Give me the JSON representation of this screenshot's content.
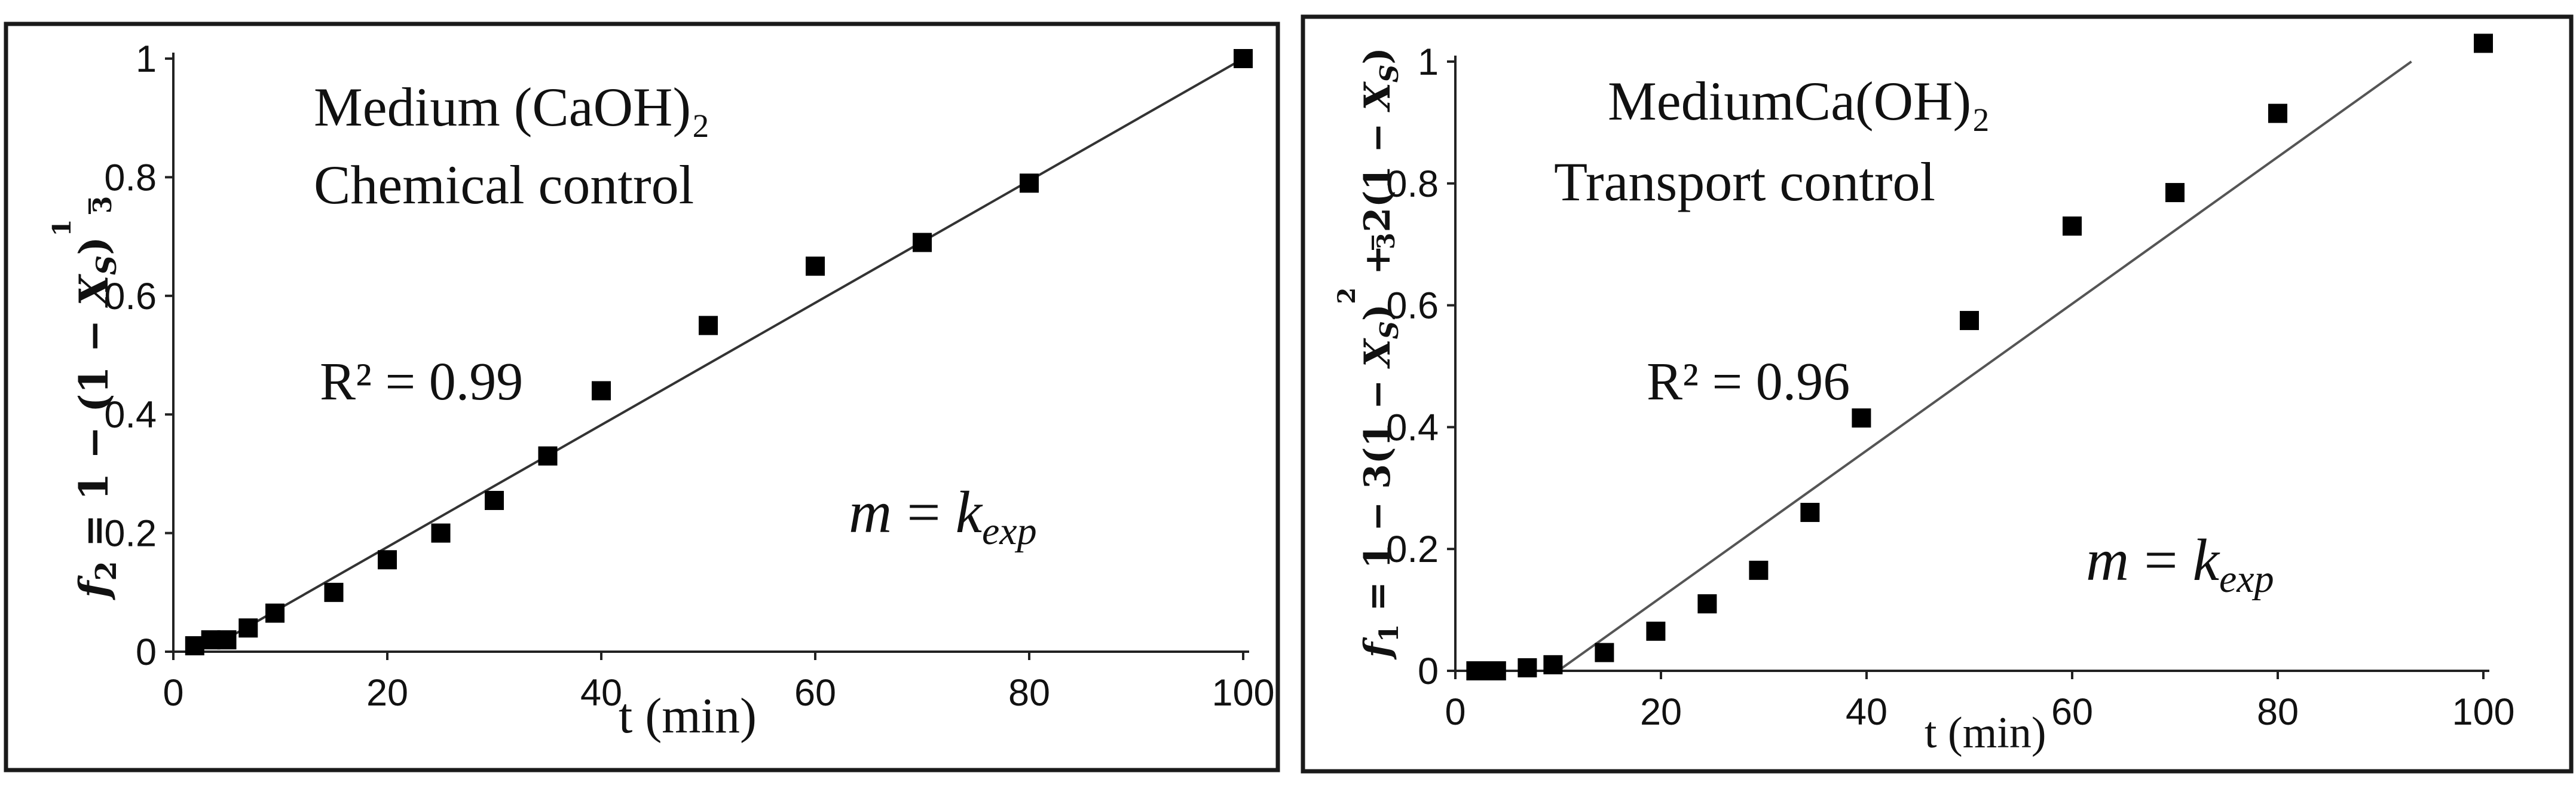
{
  "chart_data": [
    {
      "type": "scatter",
      "title": "Medium (CaOH)₂",
      "subtitle": "Chemical control",
      "xlabel": "t (min)",
      "ylabel": {
        "f": "f",
        "sub": "2",
        "rhs": " = 1 − (1 − ",
        "xs": "X",
        "xs_sub": "S",
        "close": ")",
        "exp_num": "1",
        "exp_den": "3"
      },
      "xlim": [
        0,
        100
      ],
      "ylim": [
        0,
        1
      ],
      "xticks": [
        "0",
        "20",
        "40",
        "60",
        "80",
        "100"
      ],
      "yticks": [
        "0",
        "0.2",
        "0.4",
        "0.6",
        "0.8",
        "1"
      ],
      "points": [
        {
          "x": 2,
          "y": 0.01
        },
        {
          "x": 3.5,
          "y": 0.02
        },
        {
          "x": 5,
          "y": 0.02
        },
        {
          "x": 7,
          "y": 0.04
        },
        {
          "x": 9.5,
          "y": 0.065
        },
        {
          "x": 15,
          "y": 0.1
        },
        {
          "x": 20,
          "y": 0.155
        },
        {
          "x": 25,
          "y": 0.2
        },
        {
          "x": 30,
          "y": 0.255
        },
        {
          "x": 35,
          "y": 0.33
        },
        {
          "x": 40,
          "y": 0.44
        },
        {
          "x": 50,
          "y": 0.55
        },
        {
          "x": 60,
          "y": 0.65
        },
        {
          "x": 70,
          "y": 0.69
        },
        {
          "x": 80,
          "y": 0.79
        },
        {
          "x": 100,
          "y": 1.0
        }
      ],
      "fit_line": {
        "x0": 5,
        "y0": 0.022,
        "x1": 100,
        "y1": 1.0
      },
      "r2_label": "R² = 0.99",
      "model": {
        "m": "m",
        "eq": " = ",
        "k": "k",
        "k_sub": "exp"
      },
      "colors": {
        "marker": "#000000",
        "line": "#333333",
        "frame": "#1a1a1a"
      }
    },
    {
      "type": "scatter",
      "title": "MediumCa(OH)₂",
      "subtitle": "Transport control",
      "xlabel": "t (min)",
      "ylabel": {
        "f": "f",
        "sub": "1",
        "rhs": " = 1 − 3(1 − ",
        "xs": "X",
        "xs_sub": "S",
        "close": ")",
        "exp_num": "2",
        "exp_den": "3",
        "tail": " + 2(1 − ",
        "tail_xs": "X",
        "tail_xs_sub": "S",
        "tail_close": ")"
      },
      "xlim": [
        0,
        100
      ],
      "ylim": [
        0,
        1
      ],
      "xticks": [
        "0",
        "20",
        "40",
        "60",
        "80",
        "100"
      ],
      "yticks": [
        "0",
        "0.2",
        "0.4",
        "0.6",
        "0.8",
        "1"
      ],
      "points": [
        {
          "x": 2,
          "y": 0.0
        },
        {
          "x": 3,
          "y": 0.0
        },
        {
          "x": 4,
          "y": 0.0
        },
        {
          "x": 7,
          "y": 0.005
        },
        {
          "x": 9.5,
          "y": 0.01
        },
        {
          "x": 14.5,
          "y": 0.03
        },
        {
          "x": 19.5,
          "y": 0.065
        },
        {
          "x": 24.5,
          "y": 0.11
        },
        {
          "x": 29.5,
          "y": 0.165
        },
        {
          "x": 34.5,
          "y": 0.26
        },
        {
          "x": 39.5,
          "y": 0.415
        },
        {
          "x": 50,
          "y": 0.575
        },
        {
          "x": 60,
          "y": 0.73
        },
        {
          "x": 70,
          "y": 0.785
        },
        {
          "x": 80,
          "y": 0.915
        },
        {
          "x": 100,
          "y": 1.03
        }
      ],
      "fit_line": {
        "x0": 10,
        "y0": 0.0,
        "x1": 93,
        "y1": 1.0
      },
      "r2_label": "R² = 0.96",
      "model": {
        "m": "m",
        "eq": " = ",
        "k": "k",
        "k_sub": "exp"
      },
      "colors": {
        "marker": "#000000",
        "line": "#555555",
        "frame": "#1a1a1a"
      }
    }
  ]
}
